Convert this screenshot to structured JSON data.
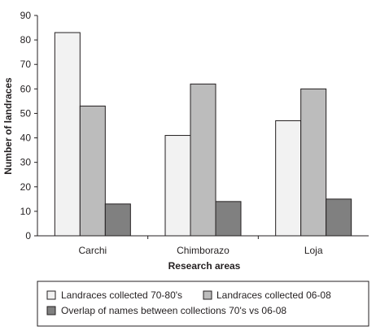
{
  "chart_data": {
    "type": "bar",
    "title": "",
    "xlabel": "Research areas",
    "ylabel": "Number of landraces",
    "ylim": [
      0,
      90
    ],
    "yticks": [
      0,
      10,
      20,
      30,
      40,
      50,
      60,
      70,
      80,
      90
    ],
    "grid": false,
    "legend_position": "bottom",
    "categories": [
      "Carchi",
      "Chimborazo",
      "Loja"
    ],
    "series": [
      {
        "name": "Landraces collected 70-80's",
        "values": [
          83,
          41,
          47
        ],
        "color": "#f2f2f2"
      },
      {
        "name": "Landraces collected 06-08",
        "values": [
          53,
          62,
          60
        ],
        "color": "#bcbcbc"
      },
      {
        "name": "Overlap of names between collections 70's vs 06-08",
        "values": [
          13,
          14,
          15
        ],
        "color": "#808080"
      }
    ]
  }
}
